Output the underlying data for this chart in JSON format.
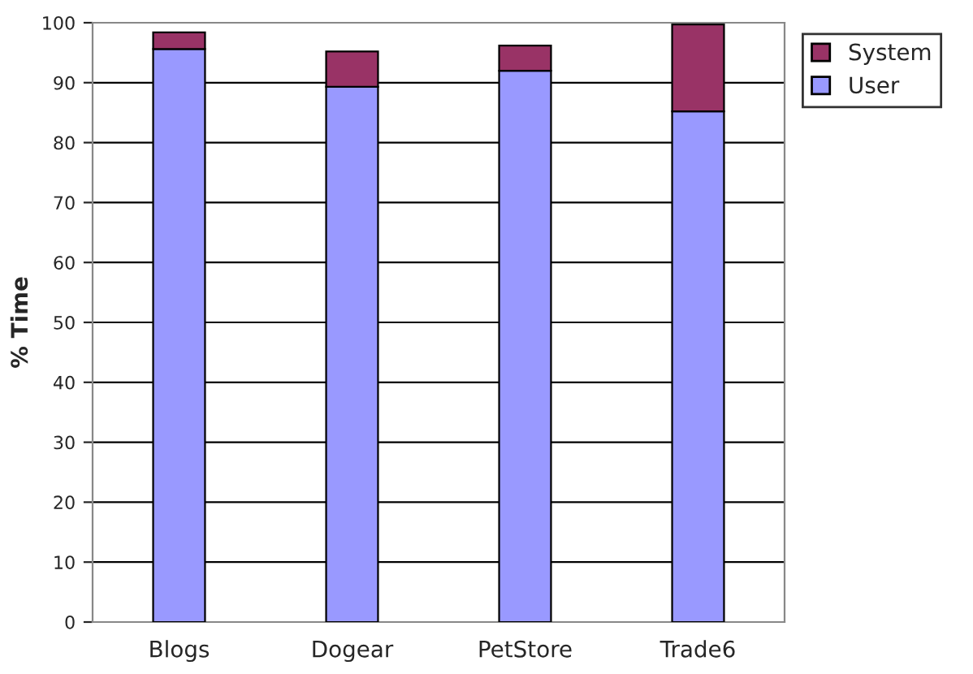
{
  "chart_data": {
    "type": "bar",
    "ylabel": "% Time",
    "categories": [
      "Blogs",
      "Dogear",
      "PetStore",
      "Trade6"
    ],
    "stacked": true,
    "series": [
      {
        "name": "User",
        "color": "#9999ff",
        "values": [
          95.6,
          89.3,
          92.0,
          85.2
        ]
      },
      {
        "name": "System",
        "color": "#993366",
        "values": [
          2.8,
          5.9,
          4.2,
          14.5
        ]
      }
    ],
    "ylim": [
      0,
      100
    ],
    "yticks": [
      0,
      10,
      20,
      30,
      40,
      50,
      60,
      70,
      80,
      90,
      100
    ],
    "grid": "y",
    "legend": "top right"
  }
}
